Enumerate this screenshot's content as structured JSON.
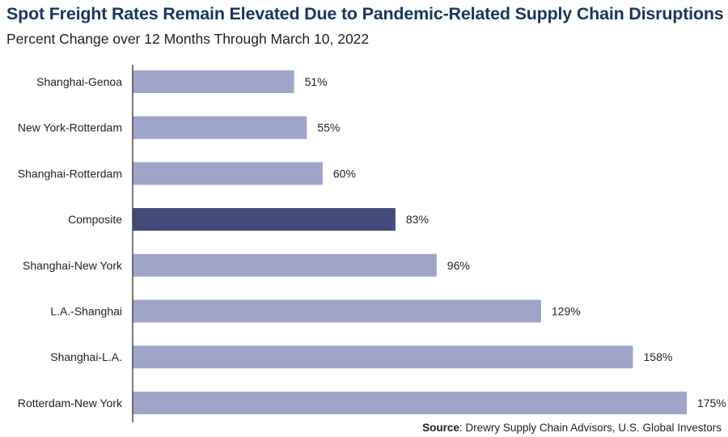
{
  "chart_data": {
    "type": "bar",
    "orientation": "horizontal",
    "title": "Spot Freight Rates Remain Elevated Due to Pandemic-Related Supply Chain Disruptions",
    "subtitle": "Percent Change over 12 Months Through March 10, 2022",
    "categories": [
      "Shanghai-Genoa",
      "New York-Rotterdam",
      "Shanghai-Rotterdam",
      "Composite",
      "Shanghai-New York",
      "L.A.-Shanghai",
      "Shanghai-L.A.",
      "Rotterdam-New York"
    ],
    "values": [
      51,
      55,
      60,
      83,
      96,
      129,
      158,
      175
    ],
    "data_labels": [
      "51%",
      "55%",
      "60%",
      "83%",
      "96%",
      "129%",
      "158%",
      "175%"
    ],
    "highlight_category": "Composite",
    "xlim": [
      0,
      175
    ],
    "grid": false,
    "colors": {
      "bar": "#9ea5c9",
      "highlight": "#454b78",
      "axis": "#333333",
      "title": "#17375e"
    }
  },
  "source": {
    "label": "Source",
    "text": ": Drewry Supply Chain Advisors, U.S. Global Investors"
  }
}
